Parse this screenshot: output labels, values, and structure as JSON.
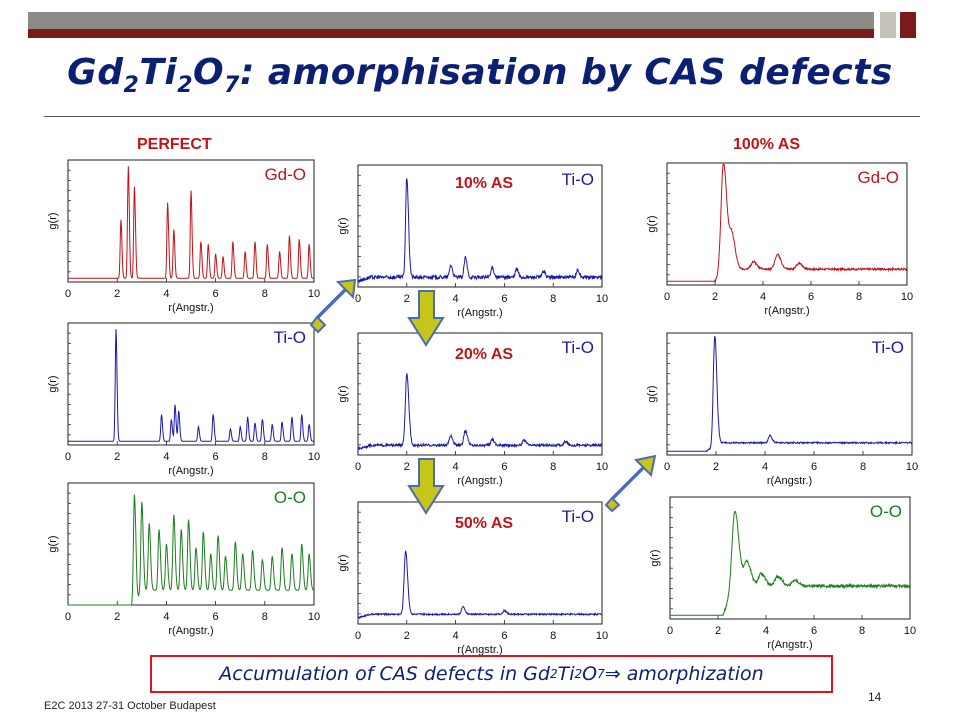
{
  "slide": {
    "title_parts": [
      "Gd",
      "2",
      "Ti",
      "2",
      "O",
      "7",
      ": amorphisation by CAS defects"
    ],
    "labels": {
      "perfect": "PERFECT",
      "as100": "100% AS",
      "as10": "10% AS",
      "as20": "20% AS",
      "as50": "50% AS"
    },
    "caption_parts": [
      "Accumulation of CAS defects in Gd",
      "2",
      "Ti",
      "2",
      "O",
      "7",
      " ⇒ amorphization"
    ],
    "footer": "E2C 2013 27-31 October Budapest",
    "page_number": "14"
  },
  "chart_data": [
    {
      "id": "perfect-gdo",
      "type": "line",
      "series_label": "Gd-O",
      "color": "#c0141b",
      "xlabel": "r(Angstr.)",
      "ylabel": "g(r)",
      "xlim": [
        0,
        10
      ],
      "xticks": [
        "0",
        "2",
        "4",
        "6",
        "8",
        "10"
      ],
      "ylim": [
        0,
        1
      ],
      "baseline": 0.03,
      "noise": 0,
      "peaks": [
        [
          2.15,
          0.48
        ],
        [
          2.45,
          0.92
        ],
        [
          2.7,
          0.75
        ],
        [
          4.05,
          0.62
        ],
        [
          4.3,
          0.4
        ],
        [
          5.0,
          0.72
        ],
        [
          5.4,
          0.3
        ],
        [
          5.7,
          0.28
        ],
        [
          6.0,
          0.2
        ],
        [
          6.3,
          0.18
        ],
        [
          6.7,
          0.3
        ],
        [
          7.2,
          0.22
        ],
        [
          7.6,
          0.3
        ],
        [
          8.1,
          0.28
        ],
        [
          8.6,
          0.22
        ],
        [
          9.0,
          0.35
        ],
        [
          9.4,
          0.32
        ],
        [
          9.8,
          0.28
        ]
      ],
      "width": 0.03
    },
    {
      "id": "perfect-tio",
      "type": "line",
      "series_label": "Ti-O",
      "color": "#1a1aaa",
      "xlabel": "r(Angstr.)",
      "ylabel": "g(r)",
      "xlim": [
        0,
        10
      ],
      "xticks": [
        "0",
        "2",
        "4",
        "6",
        "8",
        "10"
      ],
      "ylim": [
        0,
        1
      ],
      "baseline": 0.03,
      "noise": 0,
      "peaks": [
        [
          1.95,
          0.92
        ],
        [
          3.8,
          0.22
        ],
        [
          4.2,
          0.18
        ],
        [
          4.35,
          0.3
        ],
        [
          4.5,
          0.25
        ],
        [
          5.3,
          0.12
        ],
        [
          5.9,
          0.22
        ],
        [
          6.6,
          0.1
        ],
        [
          7.0,
          0.12
        ],
        [
          7.3,
          0.2
        ],
        [
          7.6,
          0.15
        ],
        [
          7.9,
          0.18
        ],
        [
          8.3,
          0.14
        ],
        [
          8.7,
          0.16
        ],
        [
          9.1,
          0.2
        ],
        [
          9.5,
          0.22
        ],
        [
          9.8,
          0.14
        ]
      ],
      "width": 0.03
    },
    {
      "id": "perfect-oo",
      "type": "line",
      "series_label": "O-O",
      "color": "#1e7d1e",
      "xlabel": "r(Angstr.)",
      "ylabel": "g(r)",
      "xlim": [
        0,
        10
      ],
      "xticks": [
        "0",
        "2",
        "4",
        "6",
        "8",
        "10"
      ],
      "ylim": [
        0,
        1
      ],
      "baseline": 0.0,
      "noise": 0,
      "start": 2.6,
      "peaks": [
        [
          2.7,
          0.88
        ],
        [
          3.0,
          0.75
        ],
        [
          3.3,
          0.55
        ],
        [
          3.7,
          0.5
        ],
        [
          4.0,
          0.38
        ],
        [
          4.3,
          0.62
        ],
        [
          4.6,
          0.5
        ],
        [
          4.9,
          0.58
        ],
        [
          5.2,
          0.35
        ],
        [
          5.5,
          0.48
        ],
        [
          5.8,
          0.3
        ],
        [
          6.1,
          0.45
        ],
        [
          6.4,
          0.28
        ],
        [
          6.8,
          0.4
        ],
        [
          7.1,
          0.3
        ],
        [
          7.5,
          0.33
        ],
        [
          7.9,
          0.25
        ],
        [
          8.3,
          0.28
        ],
        [
          8.7,
          0.35
        ],
        [
          9.1,
          0.3
        ],
        [
          9.5,
          0.38
        ],
        [
          9.8,
          0.3
        ]
      ],
      "width": 0.04,
      "floor": 0.12
    },
    {
      "id": "as10-tio",
      "type": "line",
      "series_label": "Ti-O",
      "color": "#1a1aaa",
      "xlabel": "r(Angstr.)",
      "ylabel": "g(r)",
      "xlim": [
        0,
        10
      ],
      "xticks": [
        "0",
        "2",
        "4",
        "6",
        "8",
        "10"
      ],
      "ylim": [
        0,
        1
      ],
      "baseline": 0.05,
      "noise": 0.015,
      "peaks": [
        [
          2.0,
          0.82
        ],
        [
          3.8,
          0.1
        ],
        [
          4.4,
          0.16
        ],
        [
          5.5,
          0.08
        ],
        [
          6.5,
          0.07
        ],
        [
          7.6,
          0.05
        ],
        [
          9.0,
          0.06
        ]
      ],
      "width": 0.05,
      "floor": 0.08
    },
    {
      "id": "as20-tio",
      "type": "line",
      "series_label": "Ti-O",
      "color": "#1a1aaa",
      "xlabel": "r(Angstr.)",
      "ylabel": "g(r)",
      "xlim": [
        0,
        10
      ],
      "xticks": [
        "0",
        "2",
        "4",
        "6",
        "8",
        "10"
      ],
      "ylim": [
        0,
        1
      ],
      "baseline": 0.05,
      "noise": 0.01,
      "peaks": [
        [
          2.0,
          0.58
        ],
        [
          3.8,
          0.08
        ],
        [
          4.4,
          0.12
        ],
        [
          5.5,
          0.05
        ],
        [
          6.8,
          0.04
        ],
        [
          8.5,
          0.03
        ]
      ],
      "width": 0.06,
      "floor": 0.08
    },
    {
      "id": "as50-tio",
      "type": "line",
      "series_label": "Ti-O",
      "color": "#1a1aaa",
      "xlabel": "r(Angstr.)",
      "ylabel": "g(r)",
      "xlim": [
        0,
        10
      ],
      "xticks": [
        "0",
        "2",
        "4",
        "6",
        "8",
        "10"
      ],
      "ylim": [
        0,
        1
      ],
      "baseline": 0.05,
      "noise": 0.006,
      "peaks": [
        [
          1.95,
          0.52
        ],
        [
          4.3,
          0.06
        ],
        [
          6.0,
          0.03
        ]
      ],
      "width": 0.06,
      "floor": 0.08
    },
    {
      "id": "as100-gdo",
      "type": "line",
      "series_label": "Gd-O",
      "color": "#c0141b",
      "xlabel": "r(Angstr.)",
      "ylabel": "g(r)",
      "xlim": [
        0,
        10
      ],
      "xticks": [
        "0",
        "2",
        "4",
        "6",
        "8",
        "10"
      ],
      "ylim": [
        0,
        1
      ],
      "baseline": 0.03,
      "noise": 0.008,
      "peaks": [
        [
          2.35,
          0.9
        ],
        [
          2.7,
          0.28
        ],
        [
          3.6,
          0.06
        ],
        [
          4.6,
          0.12
        ],
        [
          5.5,
          0.05
        ]
      ],
      "width": 0.1,
      "floor": 0.13,
      "start": 2.0
    },
    {
      "id": "as100-tio",
      "type": "line",
      "series_label": "Ti-O",
      "color": "#1a1aaa",
      "xlabel": "r(Angstr.)",
      "ylabel": "g(r)",
      "xlim": [
        0,
        10
      ],
      "xticks": [
        "0",
        "2",
        "4",
        "6",
        "8",
        "10"
      ],
      "ylim": [
        0,
        1
      ],
      "baseline": 0.03,
      "noise": 0.006,
      "peaks": [
        [
          1.95,
          0.9
        ],
        [
          4.2,
          0.06
        ]
      ],
      "width": 0.06,
      "floor": 0.1,
      "start": 1.6
    },
    {
      "id": "as100-oo",
      "type": "line",
      "series_label": "O-O",
      "color": "#1e7d1e",
      "xlabel": "r(Angstr.)",
      "ylabel": "g(r)",
      "xlim": [
        0,
        10
      ],
      "xticks": [
        "0",
        "2",
        "4",
        "6",
        "8",
        "10"
      ],
      "ylim": [
        0,
        1
      ],
      "baseline": 0.03,
      "noise": 0.012,
      "peaks": [
        [
          2.7,
          0.62
        ],
        [
          3.2,
          0.2
        ],
        [
          3.8,
          0.1
        ],
        [
          4.5,
          0.08
        ],
        [
          5.2,
          0.05
        ]
      ],
      "width": 0.12,
      "floor": 0.27,
      "start": 2.2
    }
  ],
  "colors": {
    "arrow_fill": "#c6c61a",
    "arrow_stroke": "#4a6bb5",
    "bar_dark": "#7a1b1b",
    "bar_mid": "#8a8a80",
    "bar_light": "#bfbfb4"
  }
}
